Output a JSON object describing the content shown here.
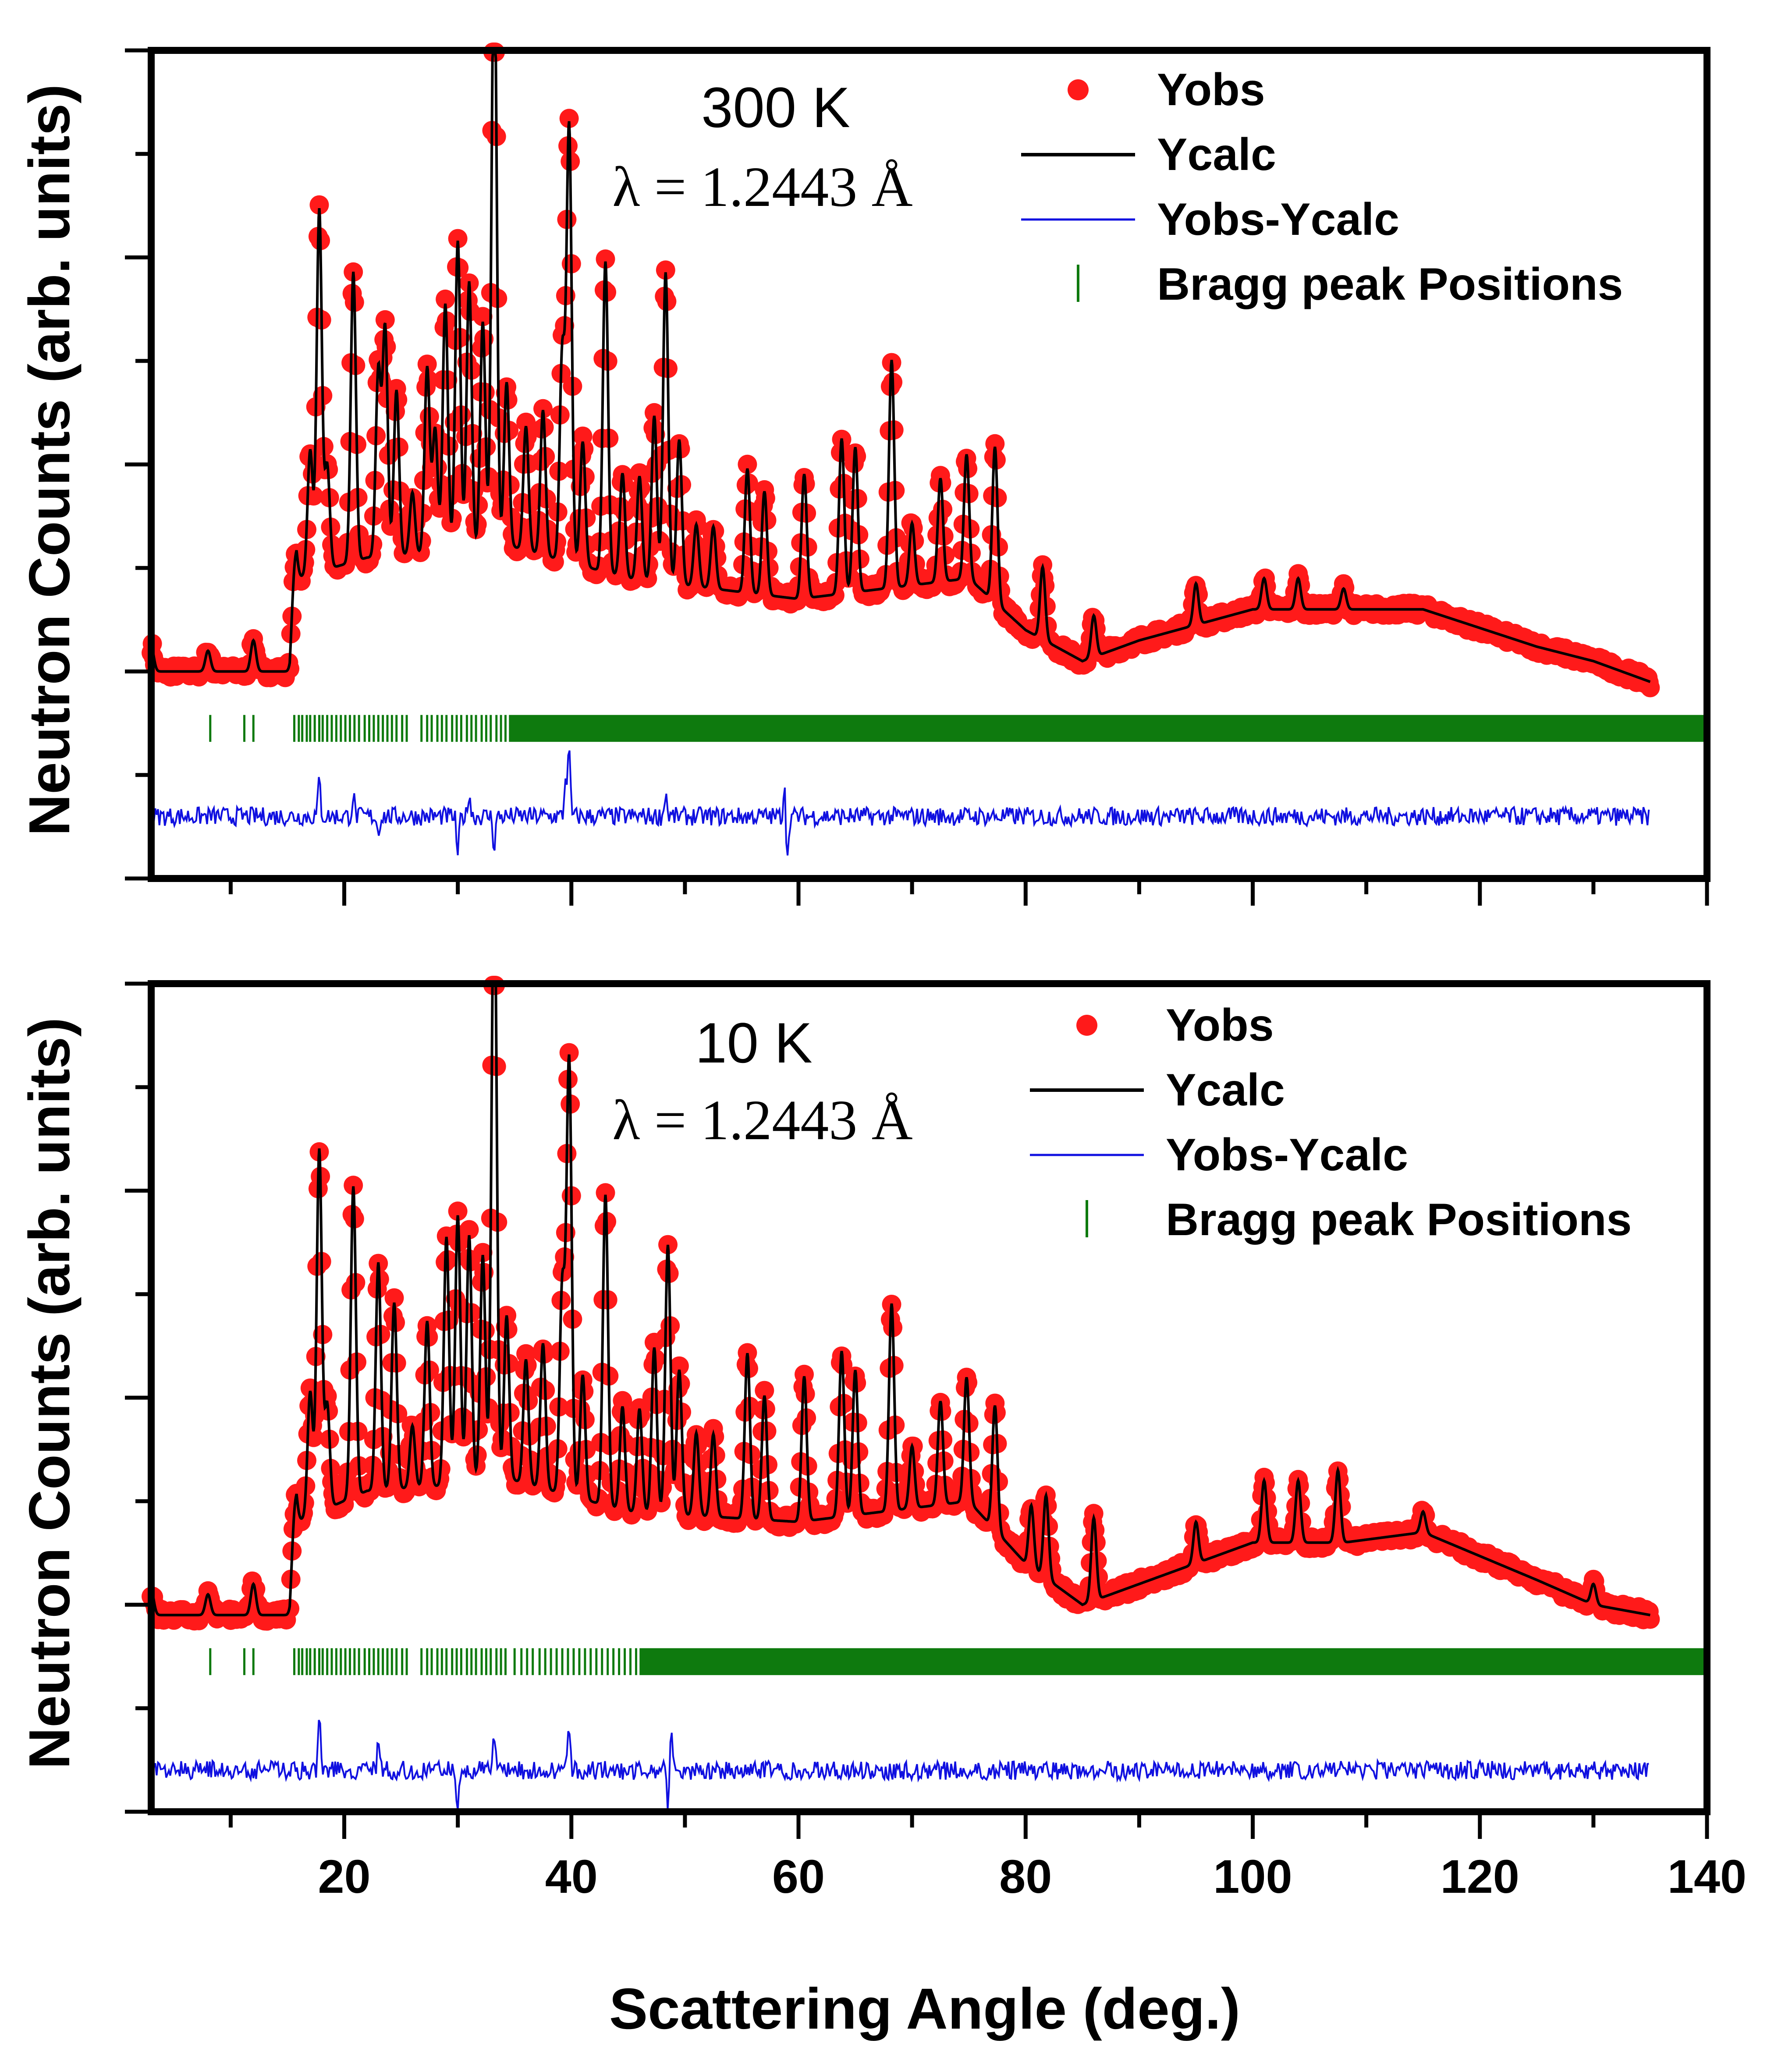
{
  "figure": {
    "x_axis_title": "Scattering Angle (deg.)",
    "y_axis_title": "Neutron Counts (arb. units)"
  },
  "chart_data": [
    {
      "type": "line",
      "title": "300 K",
      "subtitle": "λ = 1.2443 Å",
      "xlabel": "Scattering Angle (deg.)",
      "ylabel": "Neutron Counts (arb. units)",
      "xlim": [
        3,
        140
      ],
      "ylim": [
        -1.0,
        3.0
      ],
      "x_ticks": [
        20,
        40,
        60,
        80,
        100,
        120,
        140
      ],
      "show_x_tick_labels": false,
      "x_range_data": [
        3,
        135
      ],
      "baseline": 0.0,
      "background": [
        [
          3,
          0.0
        ],
        [
          15.2,
          0.0
        ],
        [
          15.8,
          0.45
        ],
        [
          22,
          0.55
        ],
        [
          35,
          0.6
        ],
        [
          45,
          0.45
        ],
        [
          60,
          0.35
        ],
        [
          75,
          0.45
        ],
        [
          80,
          0.2
        ],
        [
          85,
          0.05
        ],
        [
          90,
          0.15
        ],
        [
          100,
          0.3
        ],
        [
          108,
          0.3
        ],
        [
          115,
          0.3
        ],
        [
          125,
          0.12
        ],
        [
          130,
          0.05
        ],
        [
          135,
          -0.05
        ]
      ],
      "peaks": [
        {
          "x": 3.0,
          "h": 0.12
        },
        {
          "x": 8.0,
          "h": 0.1
        },
        {
          "x": 12.0,
          "h": 0.15
        },
        {
          "x": 15.6,
          "h": 0.2
        },
        {
          "x": 17.0,
          "h": 0.6
        },
        {
          "x": 17.8,
          "h": 1.75
        },
        {
          "x": 18.5,
          "h": 0.5
        },
        {
          "x": 20.8,
          "h": 1.4
        },
        {
          "x": 23.0,
          "h": 0.9
        },
        {
          "x": 23.6,
          "h": 1.1
        },
        {
          "x": 24.6,
          "h": 0.8
        },
        {
          "x": 26.0,
          "h": 0.3
        },
        {
          "x": 27.3,
          "h": 0.9
        },
        {
          "x": 28.0,
          "h": 0.6
        },
        {
          "x": 28.9,
          "h": 1.2
        },
        {
          "x": 30.0,
          "h": 1.5
        },
        {
          "x": 31.0,
          "h": 1.3
        },
        {
          "x": 32.2,
          "h": 1.1
        },
        {
          "x": 33.2,
          "h": 2.95
        },
        {
          "x": 34.3,
          "h": 0.8
        },
        {
          "x": 36.0,
          "h": 0.6
        },
        {
          "x": 37.5,
          "h": 0.7
        },
        {
          "x": 39.2,
          "h": 1.0
        },
        {
          "x": 39.8,
          "h": 2.1
        },
        {
          "x": 41.0,
          "h": 0.6
        },
        {
          "x": 43.0,
          "h": 1.5
        },
        {
          "x": 44.5,
          "h": 0.5
        },
        {
          "x": 46.0,
          "h": 0.5
        },
        {
          "x": 47.3,
          "h": 0.8
        },
        {
          "x": 48.3,
          "h": 1.5
        },
        {
          "x": 49.5,
          "h": 0.7
        },
        {
          "x": 51.0,
          "h": 0.3
        },
        {
          "x": 52.5,
          "h": 0.3
        },
        {
          "x": 55.5,
          "h": 0.6
        },
        {
          "x": 57.0,
          "h": 0.5
        },
        {
          "x": 60.5,
          "h": 0.6
        },
        {
          "x": 63.8,
          "h": 0.75
        },
        {
          "x": 65.0,
          "h": 0.7
        },
        {
          "x": 68.2,
          "h": 1.1
        },
        {
          "x": 70.0,
          "h": 0.3
        },
        {
          "x": 72.5,
          "h": 0.5
        },
        {
          "x": 74.8,
          "h": 0.6
        },
        {
          "x": 77.3,
          "h": 0.75
        },
        {
          "x": 81.5,
          "h": 0.35
        },
        {
          "x": 86.0,
          "h": 0.2
        },
        {
          "x": 95.0,
          "h": 0.2
        },
        {
          "x": 101.0,
          "h": 0.15
        },
        {
          "x": 104.0,
          "h": 0.15
        },
        {
          "x": 108.0,
          "h": 0.1
        }
      ],
      "bragg_marks_x": [
        8.2,
        11.2,
        12.0,
        15.6,
        16.0,
        16.3,
        16.7,
        17.0,
        17.4,
        17.8,
        18.1,
        18.5,
        18.9,
        19.3,
        19.7,
        20.1,
        20.5,
        20.9,
        21.3,
        21.8,
        22.2,
        22.6,
        23.0,
        23.4,
        23.8,
        24.2,
        24.6,
        25.1,
        25.5,
        26.8,
        27.3,
        27.7,
        28.2,
        28.6,
        29.0,
        29.5,
        29.9,
        30.3,
        30.8,
        31.2,
        31.6,
        32.1,
        32.5,
        32.9,
        33.4,
        33.8,
        34.2
      ],
      "bragg_dense_from": 34.5,
      "bragg_dense_to": 140,
      "diff_offset": -0.7,
      "diff_spikes": [
        [
          17.8,
          0.18
        ],
        [
          20.8,
          0.1
        ],
        [
          23.0,
          -0.08
        ],
        [
          30.0,
          -0.2
        ],
        [
          31.0,
          0.12
        ],
        [
          33.2,
          -0.15
        ],
        [
          39.5,
          0.2
        ],
        [
          39.8,
          0.32
        ],
        [
          48.3,
          0.12
        ],
        [
          58.8,
          0.2
        ],
        [
          59.0,
          -0.25
        ]
      ],
      "legend": [
        {
          "label": "Yobs",
          "color": "#ff1a1a",
          "kind": "dot"
        },
        {
          "label": "Ycalc",
          "color": "#000000",
          "kind": "line"
        },
        {
          "label": "Yobs-Ycalc",
          "color": "#1010e0",
          "kind": "line"
        },
        {
          "label": "Bragg peak Positions",
          "color": "#0e7a0e",
          "kind": "bar"
        }
      ]
    },
    {
      "type": "line",
      "title": "10 K",
      "subtitle": "λ = 1.2443 Å",
      "xlabel": "Scattering Angle (deg.)",
      "ylabel": "Neutron Counts (arb. units)",
      "xlim": [
        3,
        140
      ],
      "ylim": [
        -1.0,
        3.0
      ],
      "x_ticks": [
        20,
        40,
        60,
        80,
        100,
        120,
        140
      ],
      "show_x_tick_labels": true,
      "x_range_data": [
        3,
        135
      ],
      "baseline": 0.0,
      "background": [
        [
          3,
          -0.05
        ],
        [
          15.2,
          -0.05
        ],
        [
          15.8,
          0.4
        ],
        [
          22,
          0.55
        ],
        [
          35,
          0.6
        ],
        [
          45,
          0.45
        ],
        [
          60,
          0.4
        ],
        [
          75,
          0.5
        ],
        [
          80,
          0.2
        ],
        [
          85,
          0.0
        ],
        [
          90,
          0.1
        ],
        [
          100,
          0.3
        ],
        [
          108,
          0.3
        ],
        [
          115,
          0.35
        ],
        [
          125,
          0.12
        ],
        [
          130,
          0.0
        ],
        [
          135,
          -0.05
        ]
      ],
      "peaks": [
        {
          "x": 3.0,
          "h": 0.12
        },
        {
          "x": 8.0,
          "h": 0.1
        },
        {
          "x": 12.0,
          "h": 0.15
        },
        {
          "x": 15.6,
          "h": 0.2
        },
        {
          "x": 17.0,
          "h": 0.6
        },
        {
          "x": 17.8,
          "h": 1.75
        },
        {
          "x": 18.5,
          "h": 0.5
        },
        {
          "x": 20.8,
          "h": 1.5
        },
        {
          "x": 23.0,
          "h": 1.1
        },
        {
          "x": 24.4,
          "h": 0.9
        },
        {
          "x": 26.0,
          "h": 0.3
        },
        {
          "x": 27.3,
          "h": 0.8
        },
        {
          "x": 29.0,
          "h": 1.2
        },
        {
          "x": 30.0,
          "h": 1.3
        },
        {
          "x": 31.0,
          "h": 1.2
        },
        {
          "x": 32.2,
          "h": 1.1
        },
        {
          "x": 33.2,
          "h": 3.0
        },
        {
          "x": 34.3,
          "h": 0.8
        },
        {
          "x": 36.0,
          "h": 0.6
        },
        {
          "x": 37.5,
          "h": 0.7
        },
        {
          "x": 39.2,
          "h": 1.0
        },
        {
          "x": 39.8,
          "h": 2.1
        },
        {
          "x": 41.0,
          "h": 0.6
        },
        {
          "x": 43.0,
          "h": 1.5
        },
        {
          "x": 44.5,
          "h": 0.5
        },
        {
          "x": 46.0,
          "h": 0.5
        },
        {
          "x": 47.3,
          "h": 0.8
        },
        {
          "x": 48.5,
          "h": 1.3
        },
        {
          "x": 49.5,
          "h": 0.7
        },
        {
          "x": 51.0,
          "h": 0.4
        },
        {
          "x": 52.5,
          "h": 0.4
        },
        {
          "x": 55.5,
          "h": 0.8
        },
        {
          "x": 57.0,
          "h": 0.6
        },
        {
          "x": 60.5,
          "h": 0.7
        },
        {
          "x": 63.8,
          "h": 0.8
        },
        {
          "x": 65.0,
          "h": 0.7
        },
        {
          "x": 68.2,
          "h": 1.0
        },
        {
          "x": 70.0,
          "h": 0.3
        },
        {
          "x": 72.5,
          "h": 0.5
        },
        {
          "x": 74.8,
          "h": 0.6
        },
        {
          "x": 77.3,
          "h": 0.6
        },
        {
          "x": 80.5,
          "h": 0.3
        },
        {
          "x": 81.8,
          "h": 0.4
        },
        {
          "x": 86.0,
          "h": 0.4
        },
        {
          "x": 95.0,
          "h": 0.2
        },
        {
          "x": 101.0,
          "h": 0.3
        },
        {
          "x": 104.0,
          "h": 0.3
        },
        {
          "x": 107.5,
          "h": 0.35
        },
        {
          "x": 115.0,
          "h": 0.1
        },
        {
          "x": 130.0,
          "h": 0.1
        }
      ],
      "bragg_marks_x": [
        8.2,
        11.2,
        12.0,
        15.6,
        16.0,
        16.3,
        16.7,
        17.0,
        17.4,
        17.8,
        18.1,
        18.5,
        18.9,
        19.3,
        19.7,
        20.1,
        20.5,
        20.9,
        21.3,
        21.8,
        22.2,
        22.6,
        23.0,
        23.4,
        23.8,
        24.2,
        24.6,
        25.1,
        25.5,
        26.8,
        27.3,
        27.7,
        28.2,
        28.6,
        29.0,
        29.5,
        29.9,
        30.3,
        30.8,
        31.2,
        31.6,
        32.1,
        32.5,
        32.9,
        33.4,
        33.8,
        34.2,
        35.0,
        35.6,
        36.1,
        36.6,
        37.2,
        37.7,
        38.2,
        38.7,
        39.2,
        39.7,
        40.2,
        40.7,
        41.2,
        41.7,
        42.2,
        42.7,
        43.2,
        43.7,
        44.2,
        44.7,
        45.2,
        45.7
      ],
      "bragg_dense_from": 46.0,
      "bragg_dense_to": 140,
      "diff_offset": -0.8,
      "diff_spikes": [
        [
          17.8,
          0.3
        ],
        [
          23.0,
          0.15
        ],
        [
          30.0,
          -0.2
        ],
        [
          33.2,
          0.15
        ],
        [
          39.8,
          0.2
        ],
        [
          48.5,
          -0.2
        ],
        [
          48.8,
          0.2
        ]
      ],
      "legend": [
        {
          "label": "Yobs",
          "color": "#ff1a1a",
          "kind": "dot"
        },
        {
          "label": "Ycalc",
          "color": "#000000",
          "kind": "line"
        },
        {
          "label": "Yobs-Ycalc",
          "color": "#1010e0",
          "kind": "line"
        },
        {
          "label": "Bragg peak Positions",
          "color": "#0e7a0e",
          "kind": "bar"
        }
      ]
    }
  ]
}
